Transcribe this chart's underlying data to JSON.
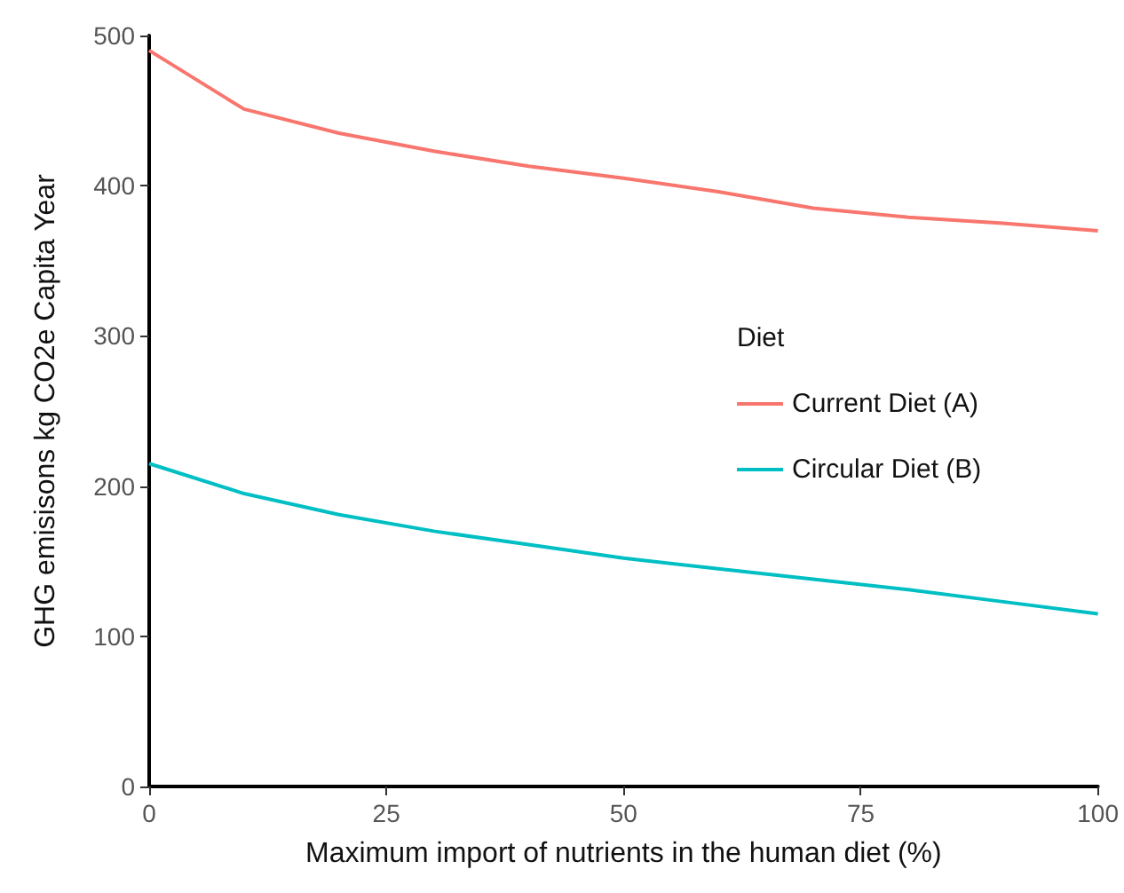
{
  "chart_data": {
    "type": "line",
    "xlabel": "Maximum import of nutrients in the human diet (%)",
    "ylabel": "GHG emisisons kg CO2e Capita Year",
    "legend_title": "Diet",
    "legend": "right",
    "grid": false,
    "marker": "none",
    "line_style": "solid",
    "x": [
      0,
      10,
      20,
      30,
      40,
      50,
      60,
      70,
      80,
      90,
      100
    ],
    "xlim": [
      0,
      100
    ],
    "xticks": [
      0,
      25,
      50,
      75,
      100
    ],
    "ylim": [
      0,
      500
    ],
    "yticks": [
      0,
      100,
      200,
      300,
      400,
      500
    ],
    "series": [
      {
        "name": "Current Diet (A)",
        "color": "#f8766d",
        "values": [
          490,
          451,
          435,
          423,
          413,
          405,
          396,
          385,
          379,
          375,
          370
        ]
      },
      {
        "name": "Circular Diet (B)",
        "color": "#00bfc4",
        "values": [
          215,
          195,
          181,
          170,
          161,
          152,
          145,
          138,
          131,
          123,
          115
        ]
      }
    ]
  }
}
